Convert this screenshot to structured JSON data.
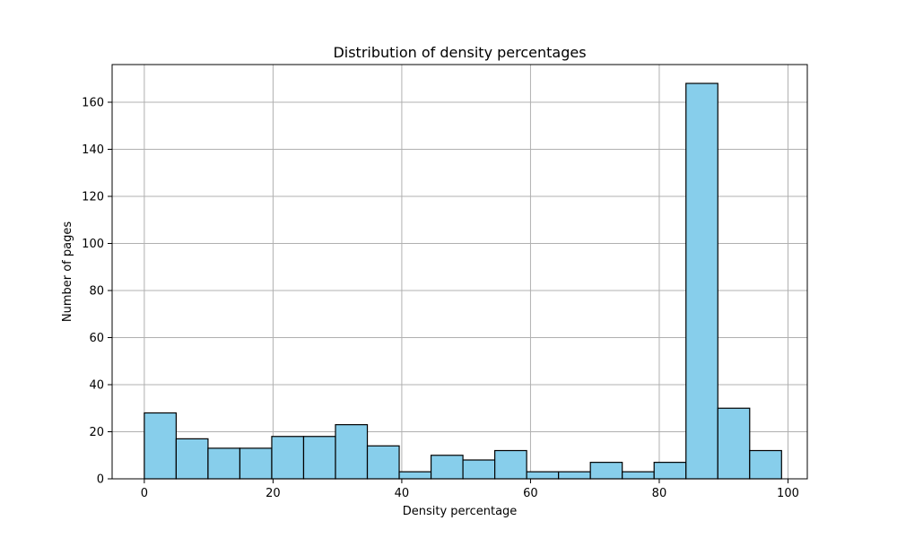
{
  "chart_data": {
    "type": "bar",
    "title": "Distribution of density percentages",
    "xlabel": "Density percentage",
    "ylabel": "Number of pages",
    "bin_edges": [
      0,
      4.95,
      9.9,
      14.85,
      19.8,
      24.75,
      29.7,
      34.65,
      39.6,
      44.55,
      49.5,
      54.45,
      59.4,
      64.35,
      69.3,
      74.25,
      79.2,
      84.15,
      89.1,
      94.05,
      99
    ],
    "values": [
      28,
      17,
      13,
      13,
      18,
      18,
      23,
      14,
      3,
      10,
      8,
      12,
      3,
      3,
      7,
      3,
      7,
      168,
      30,
      12
    ],
    "xlim": [
      -5,
      103
    ],
    "ylim": [
      0,
      176
    ],
    "xticks": [
      0,
      20,
      40,
      60,
      80,
      100
    ],
    "yticks": [
      0,
      20,
      40,
      60,
      80,
      100,
      120,
      140,
      160
    ],
    "grid": true,
    "bar_color": "#87CEEB",
    "edge_color": "#000000",
    "grid_color": "#b0b0b0"
  }
}
